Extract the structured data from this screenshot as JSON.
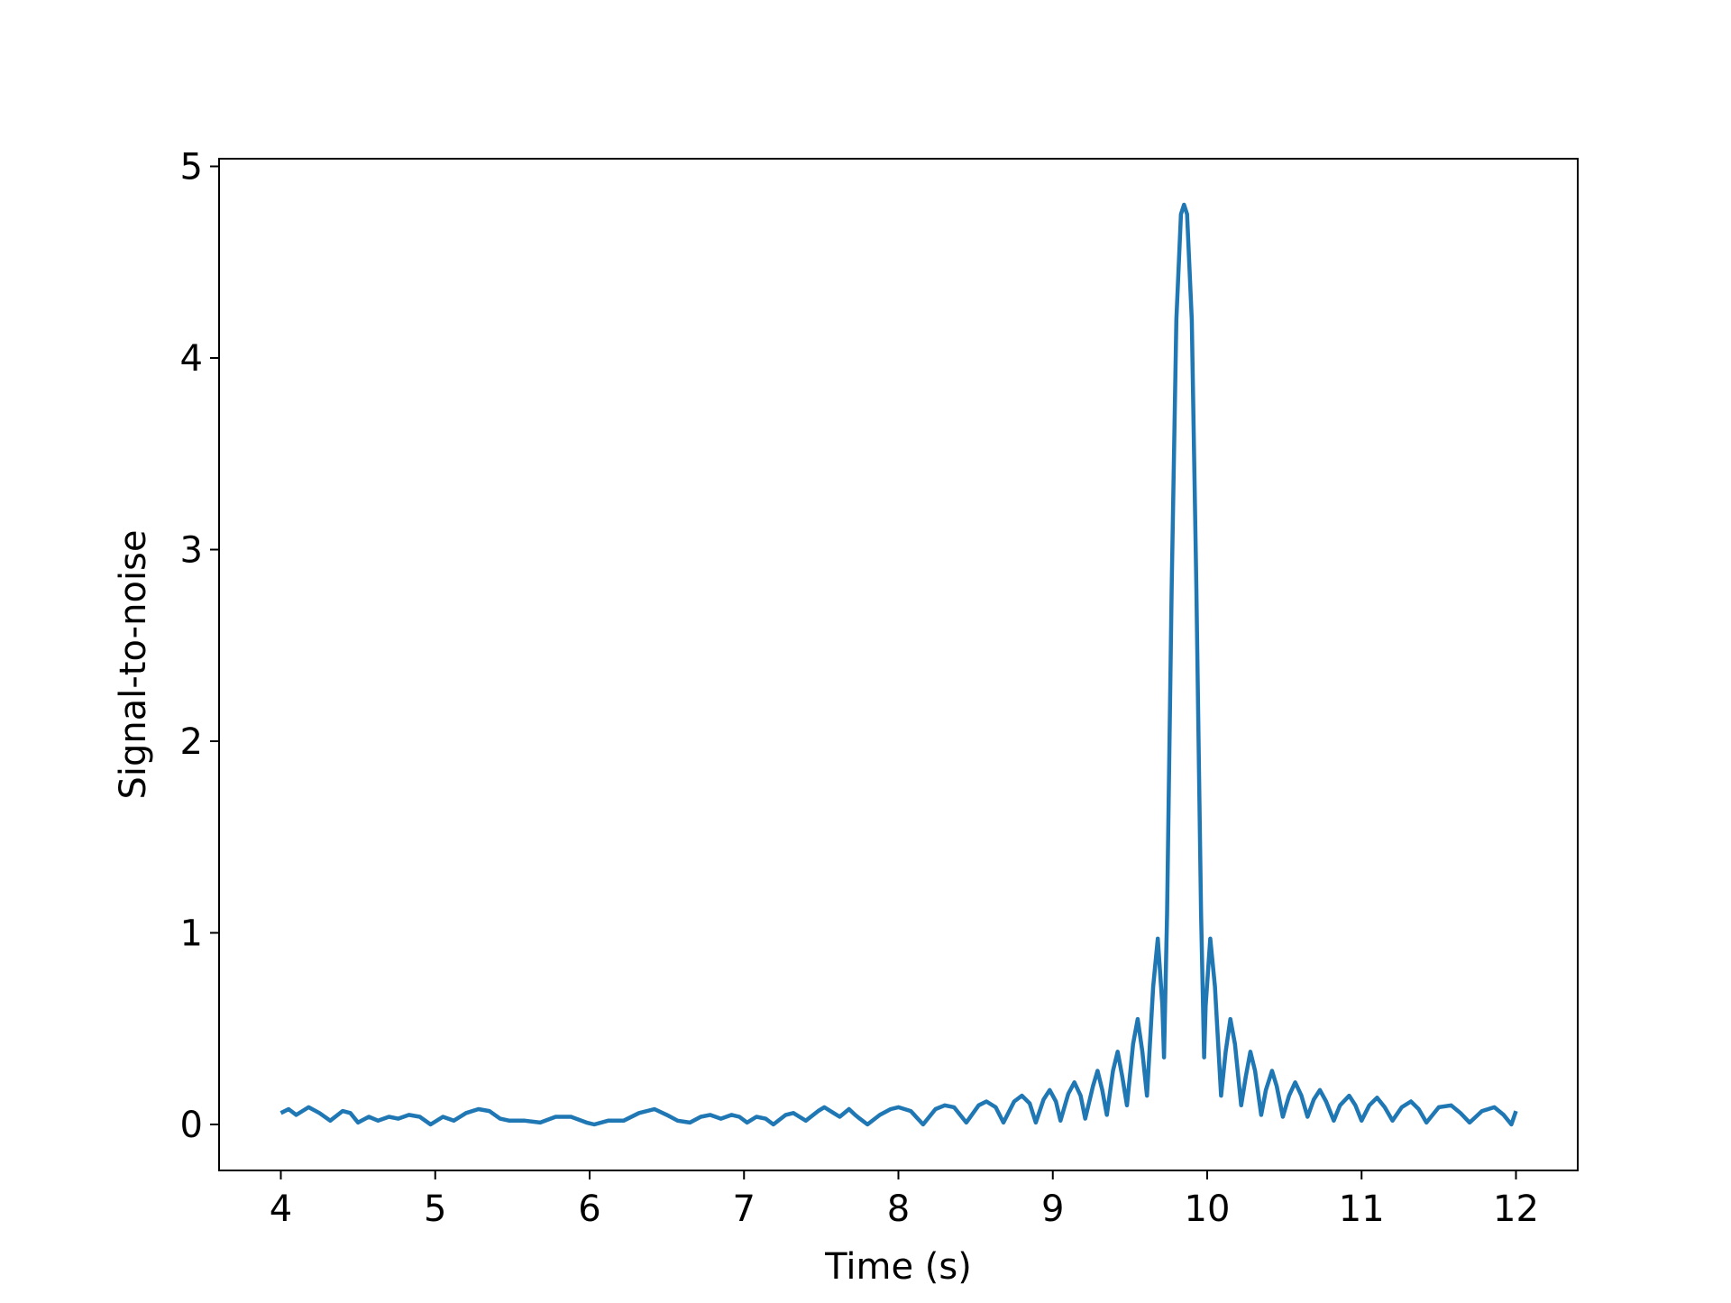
{
  "chart_data": {
    "type": "line",
    "title": "",
    "xlabel": "Time (s)",
    "ylabel": "Signal-to-noise",
    "xlim": [
      3.6,
      12.4
    ],
    "ylim": [
      -0.24,
      5.04
    ],
    "xticks": [
      4,
      5,
      6,
      7,
      8,
      9,
      10,
      11,
      12
    ],
    "yticks": [
      0,
      1,
      2,
      3,
      4,
      5
    ],
    "xtick_labels": [
      "4",
      "5",
      "6",
      "7",
      "8",
      "9",
      "10",
      "11",
      "12"
    ],
    "ytick_labels": [
      "0",
      "1",
      "2",
      "3",
      "4",
      "5"
    ],
    "grid": false,
    "legend": "none",
    "series_color": "#1f77b4",
    "series": [
      {
        "points": [
          [
            4.0,
            0.06
          ],
          [
            4.05,
            0.08
          ],
          [
            4.1,
            0.05
          ],
          [
            4.18,
            0.09
          ],
          [
            4.25,
            0.06
          ],
          [
            4.32,
            0.02
          ],
          [
            4.4,
            0.07
          ],
          [
            4.45,
            0.06
          ],
          [
            4.5,
            0.01
          ],
          [
            4.57,
            0.04
          ],
          [
            4.63,
            0.02
          ],
          [
            4.7,
            0.04
          ],
          [
            4.76,
            0.03
          ],
          [
            4.83,
            0.05
          ],
          [
            4.9,
            0.04
          ],
          [
            4.97,
            0.0
          ],
          [
            5.05,
            0.04
          ],
          [
            5.12,
            0.02
          ],
          [
            5.2,
            0.06
          ],
          [
            5.28,
            0.08
          ],
          [
            5.35,
            0.07
          ],
          [
            5.42,
            0.03
          ],
          [
            5.48,
            0.02
          ],
          [
            5.58,
            0.02
          ],
          [
            5.68,
            0.01
          ],
          [
            5.78,
            0.04
          ],
          [
            5.88,
            0.04
          ],
          [
            5.98,
            0.01
          ],
          [
            6.03,
            0.0
          ],
          [
            6.12,
            0.02
          ],
          [
            6.22,
            0.02
          ],
          [
            6.32,
            0.06
          ],
          [
            6.42,
            0.08
          ],
          [
            6.5,
            0.05
          ],
          [
            6.57,
            0.02
          ],
          [
            6.65,
            0.01
          ],
          [
            6.72,
            0.04
          ],
          [
            6.78,
            0.05
          ],
          [
            6.85,
            0.03
          ],
          [
            6.92,
            0.05
          ],
          [
            6.97,
            0.04
          ],
          [
            7.02,
            0.01
          ],
          [
            7.08,
            0.04
          ],
          [
            7.14,
            0.03
          ],
          [
            7.19,
            0.0
          ],
          [
            7.27,
            0.05
          ],
          [
            7.32,
            0.06
          ],
          [
            7.4,
            0.02
          ],
          [
            7.48,
            0.07
          ],
          [
            7.52,
            0.09
          ],
          [
            7.58,
            0.06
          ],
          [
            7.62,
            0.04
          ],
          [
            7.68,
            0.08
          ],
          [
            7.72,
            0.05
          ],
          [
            7.75,
            0.03
          ],
          [
            7.8,
            0.0
          ],
          [
            7.88,
            0.05
          ],
          [
            7.95,
            0.08
          ],
          [
            8.0,
            0.09
          ],
          [
            8.08,
            0.07
          ],
          [
            8.16,
            0.0
          ],
          [
            8.24,
            0.08
          ],
          [
            8.3,
            0.1
          ],
          [
            8.36,
            0.09
          ],
          [
            8.44,
            0.01
          ],
          [
            8.52,
            0.1
          ],
          [
            8.57,
            0.12
          ],
          [
            8.63,
            0.09
          ],
          [
            8.68,
            0.01
          ],
          [
            8.75,
            0.12
          ],
          [
            8.8,
            0.15
          ],
          [
            8.85,
            0.11
          ],
          [
            8.89,
            0.01
          ],
          [
            8.94,
            0.13
          ],
          [
            8.98,
            0.18
          ],
          [
            9.02,
            0.12
          ],
          [
            9.05,
            0.02
          ],
          [
            9.1,
            0.16
          ],
          [
            9.14,
            0.22
          ],
          [
            9.18,
            0.15
          ],
          [
            9.21,
            0.03
          ],
          [
            9.26,
            0.2
          ],
          [
            9.29,
            0.28
          ],
          [
            9.32,
            0.18
          ],
          [
            9.35,
            0.05
          ],
          [
            9.39,
            0.28
          ],
          [
            9.42,
            0.38
          ],
          [
            9.45,
            0.25
          ],
          [
            9.48,
            0.1
          ],
          [
            9.52,
            0.42
          ],
          [
            9.55,
            0.55
          ],
          [
            9.58,
            0.38
          ],
          [
            9.61,
            0.15
          ],
          [
            9.65,
            0.72
          ],
          [
            9.68,
            0.97
          ],
          [
            9.71,
            0.62
          ],
          [
            9.72,
            0.35
          ],
          [
            9.74,
            1.1
          ],
          [
            9.77,
            2.8
          ],
          [
            9.8,
            4.2
          ],
          [
            9.83,
            4.75
          ],
          [
            9.85,
            4.8
          ],
          [
            9.87,
            4.75
          ],
          [
            9.9,
            4.2
          ],
          [
            9.93,
            2.8
          ],
          [
            9.96,
            1.1
          ],
          [
            9.98,
            0.35
          ],
          [
            9.99,
            0.62
          ],
          [
            10.02,
            0.97
          ],
          [
            10.05,
            0.72
          ],
          [
            10.09,
            0.15
          ],
          [
            10.12,
            0.38
          ],
          [
            10.15,
            0.55
          ],
          [
            10.18,
            0.42
          ],
          [
            10.22,
            0.1
          ],
          [
            10.25,
            0.25
          ],
          [
            10.28,
            0.38
          ],
          [
            10.31,
            0.28
          ],
          [
            10.35,
            0.05
          ],
          [
            10.38,
            0.18
          ],
          [
            10.42,
            0.28
          ],
          [
            10.45,
            0.2
          ],
          [
            10.49,
            0.04
          ],
          [
            10.53,
            0.15
          ],
          [
            10.57,
            0.22
          ],
          [
            10.61,
            0.15
          ],
          [
            10.65,
            0.04
          ],
          [
            10.69,
            0.13
          ],
          [
            10.73,
            0.18
          ],
          [
            10.77,
            0.12
          ],
          [
            10.82,
            0.02
          ],
          [
            10.86,
            0.1
          ],
          [
            10.92,
            0.15
          ],
          [
            10.96,
            0.1
          ],
          [
            11.0,
            0.02
          ],
          [
            11.05,
            0.1
          ],
          [
            11.1,
            0.14
          ],
          [
            11.15,
            0.09
          ],
          [
            11.2,
            0.02
          ],
          [
            11.26,
            0.09
          ],
          [
            11.32,
            0.12
          ],
          [
            11.37,
            0.08
          ],
          [
            11.42,
            0.01
          ],
          [
            11.5,
            0.09
          ],
          [
            11.58,
            0.1
          ],
          [
            11.64,
            0.06
          ],
          [
            11.7,
            0.01
          ],
          [
            11.78,
            0.07
          ],
          [
            11.86,
            0.09
          ],
          [
            11.92,
            0.05
          ],
          [
            11.97,
            0.0
          ],
          [
            12.0,
            0.07
          ]
        ]
      }
    ]
  }
}
